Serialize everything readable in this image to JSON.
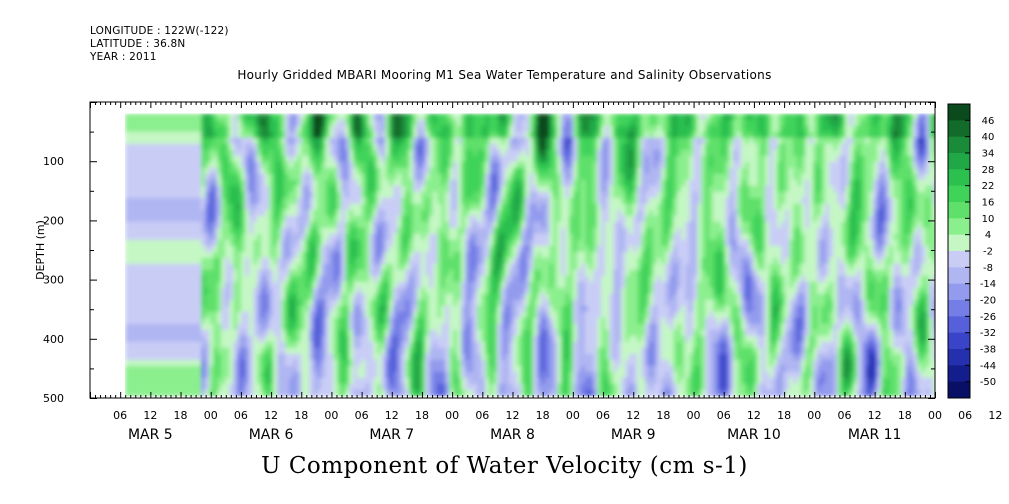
{
  "header": {
    "longitude": "LONGITUDE : 122W(-122)",
    "latitude": "LATITUDE : 36.8N",
    "year": "YEAR : 2011"
  },
  "chart_data": {
    "type": "heatmap",
    "title": "Hourly Gridded MBARI Mooring M1 Sea Water Temperature and Salinity Observations",
    "caption": "U Component of Water Velocity (cm s-1)",
    "ylabel": "DEPTH (m)",
    "ylim": [
      500,
      0
    ],
    "y_tick_labels": [
      "100",
      "200",
      "300",
      "400",
      "500"
    ],
    "y_ticks": [
      100,
      200,
      300,
      400,
      500
    ],
    "x_range_hours": [
      0,
      168
    ],
    "x_hour_labels": [
      "06",
      "12",
      "18",
      "00",
      "06",
      "12",
      "18",
      "00",
      "06",
      "12",
      "18",
      "00",
      "06",
      "12",
      "18",
      "00",
      "06",
      "12",
      "18",
      "00",
      "06",
      "12",
      "18",
      "00",
      "06",
      "12",
      "18",
      "00",
      "06",
      "12",
      "18",
      "00"
    ],
    "x_day_labels": [
      "MAR  5",
      "MAR  6",
      "MAR  7",
      "MAR  8",
      "MAR  9",
      "MAR 10",
      "MAR 11"
    ],
    "data_extent": {
      "hours_start": 7,
      "hours_end": 168,
      "depth_min": 20,
      "depth_max": 488
    },
    "colorbar": {
      "levels": [
        "46",
        "40",
        "34",
        "28",
        "22",
        "16",
        "10",
        "4",
        "-2",
        "-8",
        "-14",
        "-20",
        "-26",
        "-32",
        "-38",
        "-44",
        "-50"
      ],
      "colors": [
        "#0a4a1c",
        "#126b2a",
        "#1a8b38",
        "#21a846",
        "#2cc04f",
        "#3fd35a",
        "#5fe06b",
        "#8cef8e",
        "#c5f7c5",
        "#c9cdf6",
        "#b0b6f2",
        "#939bee",
        "#747ee6",
        "#5560da",
        "#3a44c8",
        "#2430ae",
        "#131e8c",
        "#0a0f66"
      ]
    },
    "grid": false,
    "legend": "colorbar-right"
  }
}
